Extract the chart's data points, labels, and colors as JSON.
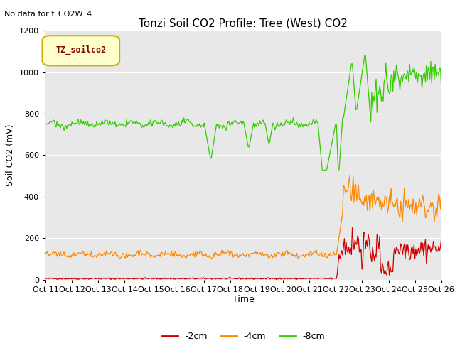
{
  "title": "Tonzi Soil CO2 Profile: Tree (West) CO2",
  "no_data_text": "No data for f_CO2W_4",
  "ylabel": "Soil CO2 (mV)",
  "xlabel": "Time",
  "legend_label": "TZ_soilco2",
  "ylim": [
    0,
    1200
  ],
  "series_labels": [
    "-2cm",
    "-4cm",
    "-8cm"
  ],
  "series_colors": [
    "#cc0000",
    "#ff8800",
    "#33cc00"
  ],
  "x_tick_labels": [
    "Oct 11",
    "Oct 12",
    "Oct 13",
    "Oct 14",
    "Oct 15",
    "Oct 16",
    "Oct 17",
    "Oct 18",
    "Oct 19",
    "Oct 20",
    "Oct 21",
    "Oct 22",
    "Oct 23",
    "Oct 24",
    "Oct 25",
    "Oct 26"
  ],
  "plot_bg_color": "#e8e8e8",
  "fig_bg_color": "#ffffff",
  "grid_color": "#ffffff",
  "title_fontsize": 11,
  "axis_fontsize": 9,
  "tick_fontsize": 8,
  "legend_box_color": "#ffffcc",
  "legend_box_edge": "#ccaa00",
  "legend_text_color": "#880000"
}
